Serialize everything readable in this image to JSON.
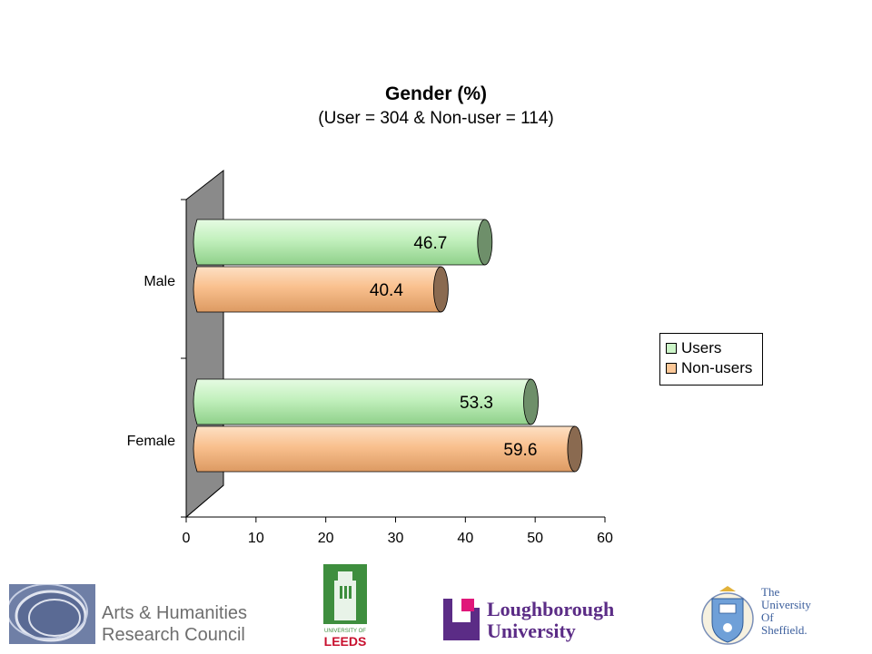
{
  "chart_data": {
    "type": "bar",
    "orientation": "horizontal",
    "title": "Gender (%)",
    "subtitle": "(User = 304 & Non-user = 114)",
    "categories": [
      "Male",
      "Female"
    ],
    "series": [
      {
        "name": "Users",
        "values": [
          46.7,
          53.3
        ],
        "color": "#ccf5c8"
      },
      {
        "name": "Non-users",
        "values": [
          40.4,
          59.6
        ],
        "color": "#fcc898"
      }
    ],
    "xlim": [
      0,
      60
    ],
    "xticks": [
      "0",
      "10",
      "20",
      "30",
      "40",
      "50",
      "60"
    ],
    "value_labels": [
      "46.7",
      "40.4",
      "53.3",
      "59.6"
    ],
    "legend_position": "right",
    "grid": false,
    "style": "3d-cylinder"
  },
  "logos": {
    "ahrc": {
      "line1": "Arts & Humanities",
      "line2": "Research Council"
    },
    "leeds": {
      "line1": "UNIVERSITY OF",
      "line2": "LEEDS"
    },
    "loughborough": {
      "line1": "Loughborough",
      "line2": "University"
    },
    "sheffield": {
      "line1": "The",
      "line2": "University",
      "line3": "Of",
      "line4": "Sheffield."
    }
  }
}
